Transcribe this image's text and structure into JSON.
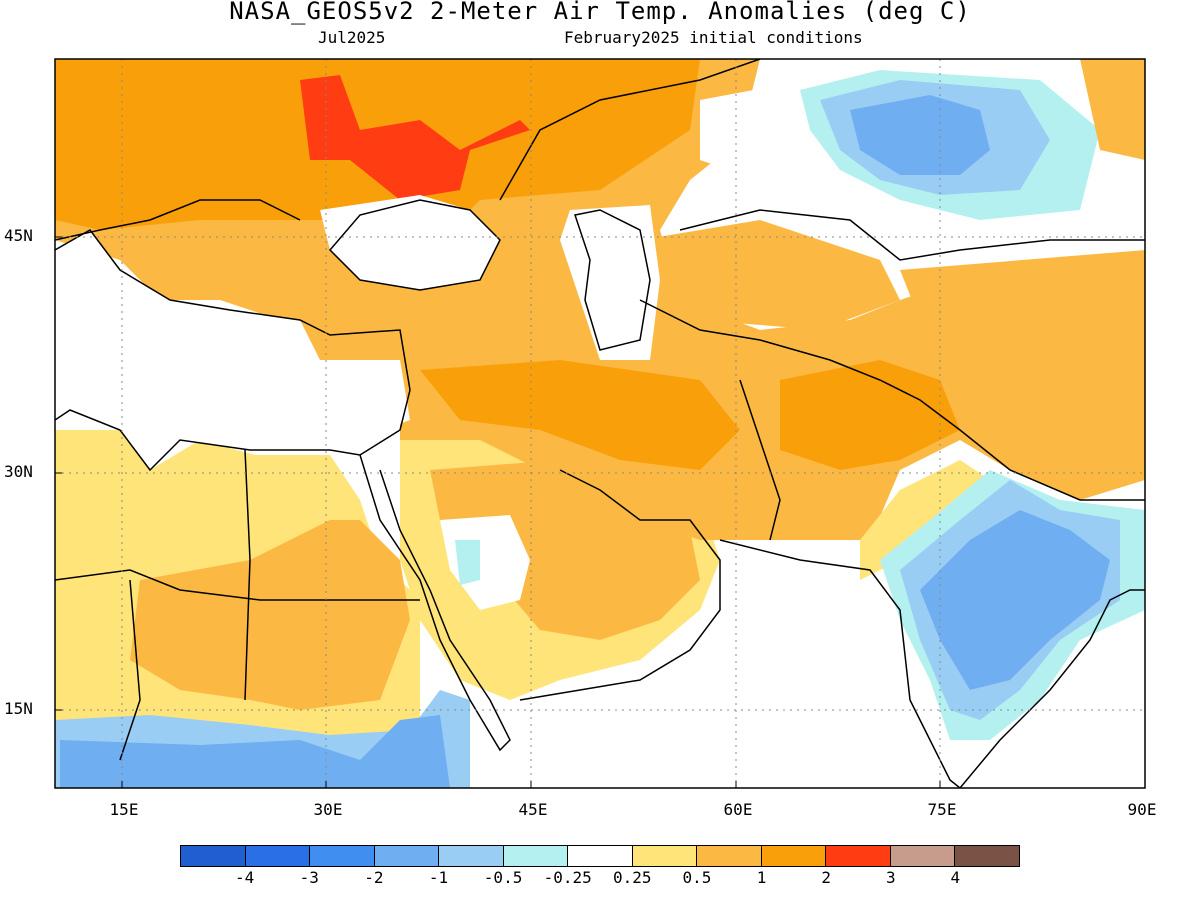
{
  "title": "NASA_GEOS5v2 2-Meter Air Temp. Anomalies (deg C)",
  "subtitle_left": "Jul2025",
  "subtitle_right": "February2025 initial conditions",
  "axes": {
    "lat_labels": [
      "45N",
      "30N",
      "15N"
    ],
    "lon_labels": [
      "15E",
      "30E",
      "45E",
      "60E",
      "75E",
      "90E"
    ]
  },
  "colorbar": {
    "colors": [
      "#1f5fd0",
      "#2a6fe6",
      "#3f8ef0",
      "#70aef2",
      "#99cdf4",
      "#b4f0f0",
      "#ffffff",
      "#ffe47a",
      "#fbb944",
      "#f99f0a",
      "#ff3c12",
      "#c89c8c",
      "#7a5346"
    ],
    "labels": [
      "-4",
      "-3",
      "-2",
      "-1",
      "-0.5",
      "-0.25",
      "0.25",
      "0.5",
      "1",
      "2",
      "3",
      "4"
    ]
  }
}
